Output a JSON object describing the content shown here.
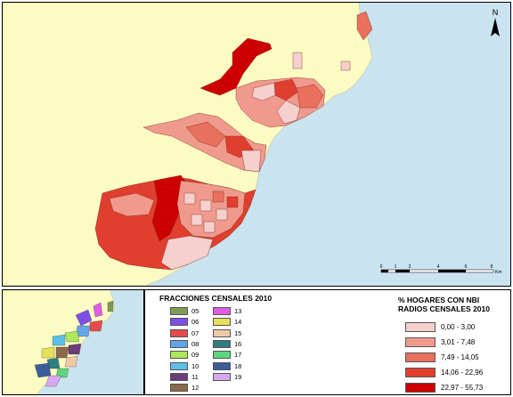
{
  "north": {
    "label": "N"
  },
  "scale_bar": {
    "ticks": [
      "0",
      "1",
      "2",
      "4",
      "6",
      "8"
    ],
    "unit": "Km"
  },
  "fracciones": {
    "title": "FRACCIONES CENSALES 2010",
    "items": [
      {
        "code": "05",
        "color": "#7f9a59"
      },
      {
        "code": "06",
        "color": "#7d4fe6"
      },
      {
        "code": "07",
        "color": "#e64b4b"
      },
      {
        "code": "08",
        "color": "#63a5e8"
      },
      {
        "code": "09",
        "color": "#aee65c"
      },
      {
        "code": "10",
        "color": "#5cc0e6"
      },
      {
        "code": "11",
        "color": "#6b3d7a"
      },
      {
        "code": "12",
        "color": "#8a6a4a"
      },
      {
        "code": "13",
        "color": "#e05ce6"
      },
      {
        "code": "14",
        "color": "#e6e05c"
      },
      {
        "code": "15",
        "color": "#f0c9a8"
      },
      {
        "code": "16",
        "color": "#2f7f7f"
      },
      {
        "code": "17",
        "color": "#5cd77f"
      },
      {
        "code": "18",
        "color": "#3d5c9a"
      },
      {
        "code": "19",
        "color": "#d7a8f0"
      }
    ]
  },
  "nbi": {
    "title_line1": "% HOGARES CON NBI",
    "title_line2": "RADIOS CENSALES 2010",
    "classes": [
      {
        "label": "0,00 - 3,00",
        "color": "#f6cfcf"
      },
      {
        "label": "3,01 - 7,48",
        "color": "#f09a8d"
      },
      {
        "label": "7,49 - 14,05",
        "color": "#e8705c"
      },
      {
        "label": "14,06 - 22,96",
        "color": "#e03e2e"
      },
      {
        "label": "22,97 - 55,73",
        "color": "#cc0000"
      }
    ]
  }
}
